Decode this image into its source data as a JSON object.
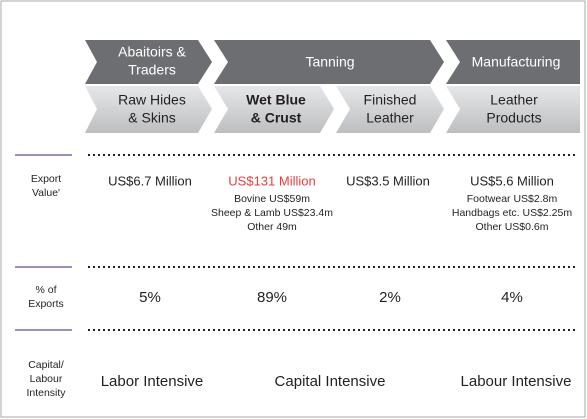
{
  "stages": [
    {
      "lines": [
        "Abaitoirs &",
        "Traders"
      ]
    },
    {
      "lines": [
        "Tanning"
      ]
    },
    {
      "lines": [
        "Manufacturing"
      ]
    }
  ],
  "products": [
    {
      "lines": [
        "Raw Hides",
        "& Skins"
      ]
    },
    {
      "lines": [
        "Wet Blue",
        "& Crust"
      ]
    },
    {
      "lines": [
        "Finished",
        "Leather"
      ]
    },
    {
      "lines": [
        "Leather",
        "Products"
      ]
    }
  ],
  "rows": [
    {
      "label": [
        "Export",
        "Value'"
      ],
      "cells": [
        {
          "value": "US$6.7 Million"
        },
        {
          "value": "US$131 Million",
          "details": [
            "Bovine US$59m",
            "Sheep & Lamb US$23.4m",
            "Other 49m"
          ]
        },
        {
          "value": "US$3.5 Million"
        },
        {
          "value": "US$5.6 Million",
          "details": [
            "Footwear US$2.8m",
            "Handbags etc. US$2.25m",
            "Other US$0.6m"
          ]
        }
      ]
    },
    {
      "label": [
        "% of",
        "Exports"
      ],
      "cells": [
        {
          "value": "5%"
        },
        {
          "value": "89%"
        },
        {
          "value": "2%"
        },
        {
          "value": "4%"
        }
      ]
    },
    {
      "label": [
        "Capital/",
        "Labour",
        "Intensity"
      ],
      "cells": [
        {
          "value": "Labor Intensive"
        },
        {
          "value": "Capital Intensive"
        },
        {
          "value": "Labour Intensive"
        }
      ]
    }
  ]
}
